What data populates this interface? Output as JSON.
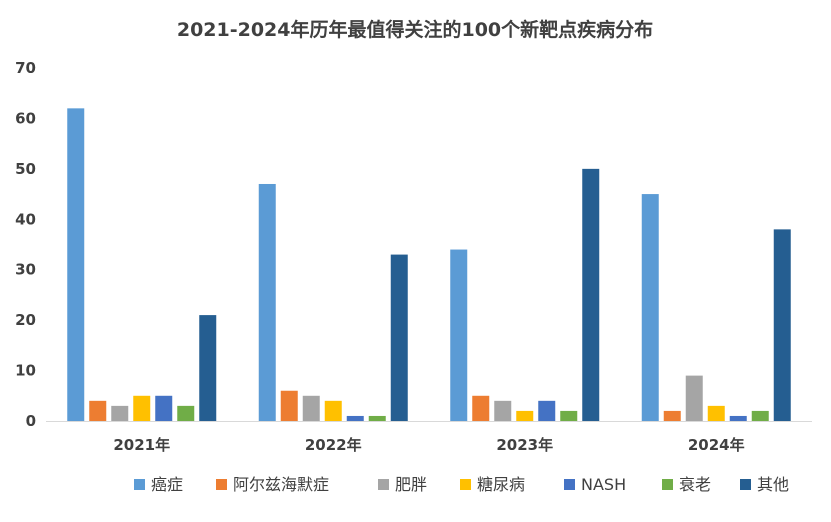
{
  "chart_data": {
    "type": "bar",
    "title": "2021-2024年历年最值得关注的100个新靶点疾病分布",
    "xlabel": "",
    "ylabel": "",
    "ylim": [
      0,
      70
    ],
    "yticks": [
      0,
      10,
      20,
      30,
      40,
      50,
      60,
      70
    ],
    "grid": false,
    "legend_position": "bottom",
    "categories": [
      "2021年",
      "2022年",
      "2023年",
      "2024年"
    ],
    "series": [
      {
        "name": "癌症",
        "color": "#5B9BD5",
        "values": [
          62,
          47,
          34,
          45
        ]
      },
      {
        "name": "阿尔兹海默症",
        "color": "#ED7D31",
        "values": [
          4,
          6,
          5,
          2
        ]
      },
      {
        "name": "肥胖",
        "color": "#A5A5A5",
        "values": [
          3,
          5,
          4,
          9
        ]
      },
      {
        "name": "糖尿病",
        "color": "#FFC000",
        "values": [
          5,
          4,
          2,
          3
        ]
      },
      {
        "name": "NASH",
        "color": "#4472C4",
        "values": [
          5,
          1,
          4,
          1
        ]
      },
      {
        "name": "衰老",
        "color": "#70AD47",
        "values": [
          3,
          1,
          2,
          2
        ]
      },
      {
        "name": "其他",
        "color": "#255E91",
        "values": [
          21,
          33,
          50,
          38
        ]
      }
    ]
  }
}
